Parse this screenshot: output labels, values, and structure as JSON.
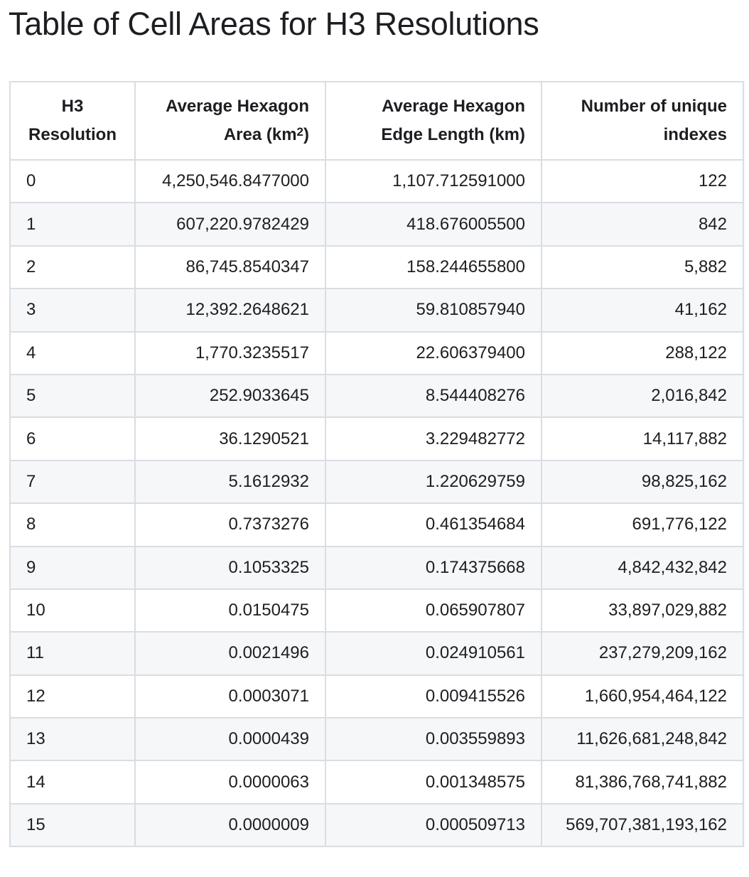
{
  "page": {
    "title": "Table of Cell Areas for H3 Resolutions"
  },
  "table": {
    "headers": {
      "resolution": {
        "line1": "H3",
        "line2": "Resolution"
      },
      "area": {
        "line1": "Average Hexagon",
        "line2_prefix": "Area (km",
        "sup": "2",
        "line2_suffix": ")"
      },
      "edge": {
        "line1": "Average Hexagon",
        "line2": "Edge Length (km)"
      },
      "count": {
        "line1": "Number of unique",
        "line2": "indexes"
      }
    },
    "rows": [
      {
        "res": "0",
        "area": "4,250,546.8477000",
        "edge": "1,107.712591000",
        "count": "122"
      },
      {
        "res": "1",
        "area": "607,220.9782429",
        "edge": "418.676005500",
        "count": "842"
      },
      {
        "res": "2",
        "area": "86,745.8540347",
        "edge": "158.244655800",
        "count": "5,882"
      },
      {
        "res": "3",
        "area": "12,392.2648621",
        "edge": "59.810857940",
        "count": "41,162"
      },
      {
        "res": "4",
        "area": "1,770.3235517",
        "edge": "22.606379400",
        "count": "288,122"
      },
      {
        "res": "5",
        "area": "252.9033645",
        "edge": "8.544408276",
        "count": "2,016,842"
      },
      {
        "res": "6",
        "area": "36.1290521",
        "edge": "3.229482772",
        "count": "14,117,882"
      },
      {
        "res": "7",
        "area": "5.1612932",
        "edge": "1.220629759",
        "count": "98,825,162"
      },
      {
        "res": "8",
        "area": "0.7373276",
        "edge": "0.461354684",
        "count": "691,776,122"
      },
      {
        "res": "9",
        "area": "0.1053325",
        "edge": "0.174375668",
        "count": "4,842,432,842"
      },
      {
        "res": "10",
        "area": "0.0150475",
        "edge": "0.065907807",
        "count": "33,897,029,882"
      },
      {
        "res": "11",
        "area": "0.0021496",
        "edge": "0.024910561",
        "count": "237,279,209,162"
      },
      {
        "res": "12",
        "area": "0.0003071",
        "edge": "0.009415526",
        "count": "1,660,954,464,122"
      },
      {
        "res": "13",
        "area": "0.0000439",
        "edge": "0.003559893",
        "count": "11,626,681,248,842"
      },
      {
        "res": "14",
        "area": "0.0000063",
        "edge": "0.001348575",
        "count": "81,386,768,741,882"
      },
      {
        "res": "15",
        "area": "0.0000009",
        "edge": "0.000509713",
        "count": "569,707,381,193,162"
      }
    ]
  }
}
